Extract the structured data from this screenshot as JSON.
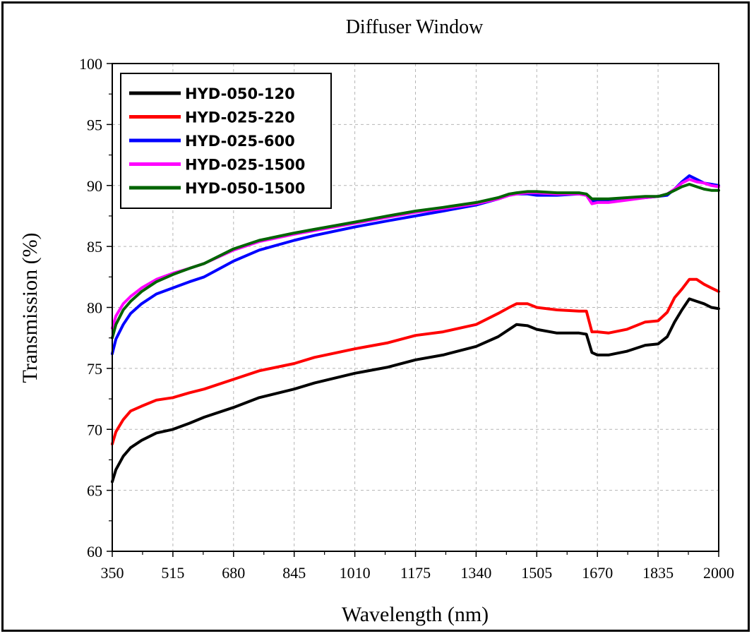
{
  "chart_data": {
    "type": "line",
    "title": "Diffuser Window",
    "xlabel": "Wavelength (nm)",
    "ylabel": "Transmission (%)",
    "xlim": [
      350,
      2000
    ],
    "ylim": [
      60,
      100
    ],
    "xticks": [
      350,
      515,
      680,
      845,
      1010,
      1175,
      1340,
      1505,
      1670,
      1835,
      2000
    ],
    "yticks": [
      60,
      65,
      70,
      75,
      80,
      85,
      90,
      95,
      100
    ],
    "grid": true,
    "legend_position": "top-left",
    "series": [
      {
        "name": "HYD-050-120",
        "color": "#000000",
        "x": [
          350,
          360,
          380,
          400,
          430,
          470,
          515,
          560,
          600,
          680,
          750,
          845,
          900,
          1010,
          1100,
          1175,
          1250,
          1340,
          1400,
          1430,
          1450,
          1480,
          1505,
          1560,
          1620,
          1640,
          1655,
          1670,
          1700,
          1750,
          1800,
          1835,
          1860,
          1880,
          1900,
          1920,
          1940,
          1960,
          1980,
          2000
        ],
        "y": [
          65.7,
          66.7,
          67.8,
          68.5,
          69.1,
          69.7,
          70.0,
          70.5,
          71.0,
          71.8,
          72.6,
          73.3,
          73.8,
          74.6,
          75.1,
          75.7,
          76.1,
          76.8,
          77.6,
          78.2,
          78.6,
          78.5,
          78.2,
          77.9,
          77.9,
          77.8,
          76.3,
          76.1,
          76.1,
          76.4,
          76.9,
          77.0,
          77.6,
          78.8,
          79.8,
          80.7,
          80.5,
          80.3,
          80.0,
          79.9
        ]
      },
      {
        "name": "HYD-025-220",
        "color": "#ff0000",
        "x": [
          350,
          360,
          380,
          400,
          430,
          470,
          515,
          560,
          600,
          680,
          750,
          845,
          900,
          1010,
          1100,
          1175,
          1250,
          1340,
          1400,
          1430,
          1450,
          1480,
          1505,
          1560,
          1620,
          1640,
          1655,
          1670,
          1700,
          1750,
          1800,
          1835,
          1860,
          1880,
          1900,
          1920,
          1940,
          1960,
          1980,
          2000
        ],
        "y": [
          68.8,
          69.8,
          70.8,
          71.5,
          71.9,
          72.4,
          72.6,
          73.0,
          73.3,
          74.1,
          74.8,
          75.4,
          75.9,
          76.6,
          77.1,
          77.7,
          78.0,
          78.6,
          79.5,
          80.0,
          80.3,
          80.3,
          80.0,
          79.8,
          79.7,
          79.7,
          78.0,
          78.0,
          77.9,
          78.2,
          78.8,
          78.9,
          79.6,
          80.8,
          81.5,
          82.3,
          82.3,
          81.9,
          81.6,
          81.3
        ]
      },
      {
        "name": "HYD-025-600",
        "color": "#0000ff",
        "x": [
          350,
          360,
          380,
          400,
          430,
          470,
          515,
          560,
          600,
          680,
          750,
          845,
          900,
          1010,
          1100,
          1175,
          1250,
          1340,
          1400,
          1430,
          1450,
          1480,
          1505,
          1560,
          1620,
          1640,
          1655,
          1670,
          1700,
          1750,
          1800,
          1835,
          1860,
          1880,
          1900,
          1920,
          1940,
          1960,
          1980,
          2000
        ],
        "y": [
          76.2,
          77.4,
          78.6,
          79.5,
          80.3,
          81.1,
          81.6,
          82.1,
          82.5,
          83.8,
          84.7,
          85.5,
          85.9,
          86.6,
          87.1,
          87.5,
          87.9,
          88.4,
          88.9,
          89.2,
          89.3,
          89.3,
          89.2,
          89.2,
          89.3,
          89.2,
          88.7,
          88.8,
          88.8,
          88.9,
          89.0,
          89.1,
          89.2,
          89.7,
          90.3,
          90.8,
          90.5,
          90.2,
          90.1,
          90.0
        ]
      },
      {
        "name": "HYD-025-1500",
        "color": "#ff00ff",
        "x": [
          350,
          360,
          380,
          400,
          430,
          470,
          515,
          560,
          600,
          680,
          750,
          845,
          900,
          1010,
          1100,
          1175,
          1250,
          1340,
          1400,
          1430,
          1450,
          1480,
          1505,
          1560,
          1620,
          1640,
          1655,
          1670,
          1700,
          1750,
          1800,
          1835,
          1860,
          1880,
          1900,
          1920,
          1940,
          1960,
          1980,
          2000
        ],
        "y": [
          78.3,
          79.3,
          80.3,
          80.9,
          81.6,
          82.3,
          82.8,
          83.2,
          83.6,
          84.7,
          85.4,
          86.0,
          86.3,
          86.9,
          87.4,
          87.8,
          88.1,
          88.5,
          88.9,
          89.2,
          89.3,
          89.4,
          89.4,
          89.3,
          89.3,
          89.2,
          88.5,
          88.6,
          88.6,
          88.8,
          89.0,
          89.1,
          89.3,
          89.7,
          90.2,
          90.5,
          90.3,
          90.2,
          90.0,
          89.9
        ]
      },
      {
        "name": "HYD-050-1500",
        "color": "#006400",
        "x": [
          350,
          360,
          380,
          400,
          430,
          470,
          515,
          560,
          600,
          680,
          750,
          845,
          900,
          1010,
          1100,
          1175,
          1250,
          1340,
          1400,
          1430,
          1450,
          1480,
          1505,
          1560,
          1620,
          1640,
          1655,
          1670,
          1700,
          1750,
          1800,
          1835,
          1860,
          1880,
          1900,
          1920,
          1940,
          1960,
          1980,
          2000
        ],
        "y": [
          77.5,
          78.6,
          79.8,
          80.5,
          81.3,
          82.1,
          82.7,
          83.2,
          83.6,
          84.8,
          85.5,
          86.1,
          86.4,
          87.0,
          87.5,
          87.9,
          88.2,
          88.6,
          89.0,
          89.3,
          89.4,
          89.5,
          89.5,
          89.4,
          89.4,
          89.3,
          88.9,
          88.9,
          88.9,
          89.0,
          89.1,
          89.1,
          89.3,
          89.6,
          89.9,
          90.1,
          89.9,
          89.7,
          89.6,
          89.6
        ]
      }
    ]
  }
}
